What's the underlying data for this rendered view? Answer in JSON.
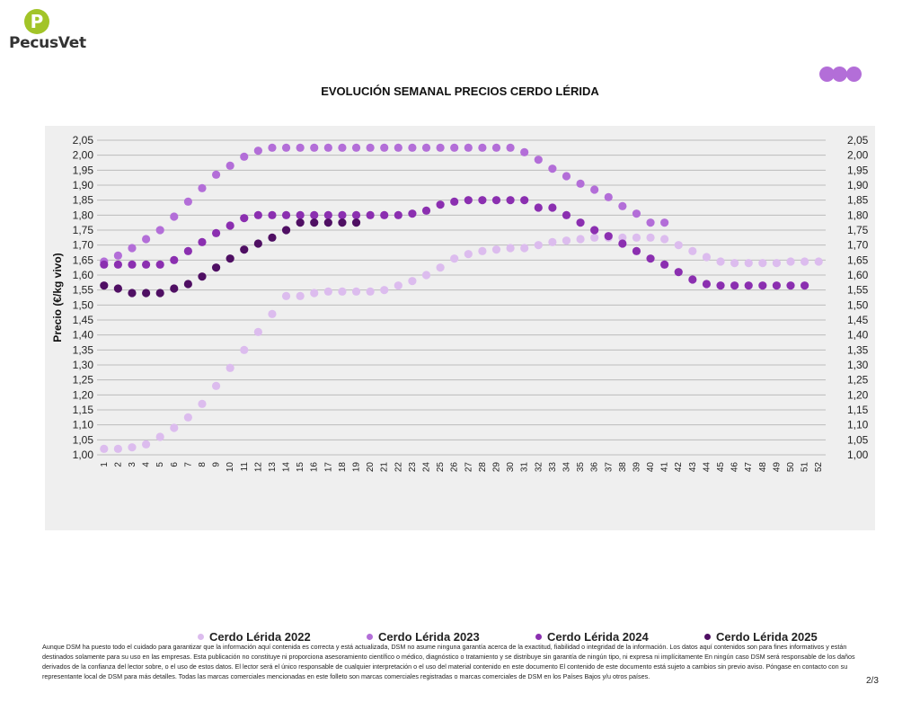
{
  "brand": {
    "logo_letter": "P",
    "logo_text": "PecusVet",
    "logo_color": "#a2c428",
    "accent_dots": [
      "#b36ed8",
      "#b36ed8",
      "#b36ed8"
    ]
  },
  "chart_data": {
    "type": "scatter",
    "title": "EVOLUCIÓN SEMANAL PRECIOS CERDO LÉRIDA",
    "ylabel": "Precio (€/kg vivo)",
    "xlabel": "",
    "ylim": [
      1.0,
      2.05
    ],
    "ytick_step": 0.05,
    "x": [
      1,
      2,
      3,
      4,
      5,
      6,
      7,
      8,
      9,
      10,
      11,
      12,
      13,
      14,
      15,
      16,
      17,
      18,
      19,
      20,
      21,
      22,
      23,
      24,
      25,
      26,
      27,
      28,
      29,
      30,
      31,
      32,
      33,
      34,
      35,
      36,
      37,
      38,
      39,
      40,
      41,
      42,
      43,
      44,
      45,
      46,
      47,
      48,
      49,
      50,
      51,
      52
    ],
    "yticks": [
      "1,00",
      "1,05",
      "1,10",
      "1,15",
      "1,20",
      "1,25",
      "1,30",
      "1,35",
      "1,40",
      "1,45",
      "1,50",
      "1,55",
      "1,60",
      "1,65",
      "1,70",
      "1,75",
      "1,80",
      "1,85",
      "1,90",
      "1,95",
      "2,00",
      "2,05"
    ],
    "grid": true,
    "legend_position": "bottom",
    "series": [
      {
        "name": "Cerdo Lérida 2022",
        "color": "#dcbcee",
        "values": [
          1.02,
          1.02,
          1.025,
          1.035,
          1.06,
          1.09,
          1.125,
          1.17,
          1.23,
          1.29,
          1.35,
          1.41,
          1.47,
          1.53,
          1.53,
          1.54,
          1.545,
          1.545,
          1.545,
          1.545,
          1.55,
          1.565,
          1.58,
          1.6,
          1.625,
          1.655,
          1.67,
          1.68,
          1.685,
          1.69,
          1.69,
          1.7,
          1.71,
          1.715,
          1.72,
          1.725,
          1.725,
          1.725,
          1.725,
          1.725,
          1.72,
          1.7,
          1.68,
          1.66,
          1.645,
          1.64,
          1.64,
          1.64,
          1.64,
          1.645,
          1.645,
          1.645
        ]
      },
      {
        "name": "Cerdo Lérida 2023",
        "color": "#b36ed8",
        "values": [
          1.645,
          1.665,
          1.69,
          1.72,
          1.75,
          1.795,
          1.845,
          1.89,
          1.935,
          1.965,
          1.995,
          2.015,
          2.025,
          2.025,
          2.025,
          2.025,
          2.025,
          2.025,
          2.025,
          2.025,
          2.025,
          2.025,
          2.025,
          2.025,
          2.025,
          2.025,
          2.025,
          2.025,
          2.025,
          2.025,
          2.01,
          1.985,
          1.955,
          1.93,
          1.905,
          1.885,
          1.86,
          1.83,
          1.805,
          1.775,
          1.775,
          null,
          null,
          null,
          null,
          null,
          null,
          null,
          null,
          null,
          null,
          null
        ]
      },
      {
        "name": "Cerdo Lérida 2024",
        "color": "#8b2fb0",
        "values": [
          1.635,
          1.635,
          1.635,
          1.635,
          1.635,
          1.65,
          1.68,
          1.71,
          1.74,
          1.765,
          1.79,
          1.8,
          1.8,
          1.8,
          1.8,
          1.8,
          1.8,
          1.8,
          1.8,
          1.8,
          1.8,
          1.8,
          1.805,
          1.815,
          1.835,
          1.845,
          1.85,
          1.85,
          1.85,
          1.85,
          1.85,
          1.825,
          1.825,
          1.8,
          1.775,
          1.75,
          1.73,
          1.705,
          1.68,
          1.655,
          1.635,
          1.61,
          1.585,
          1.57,
          1.565,
          1.565,
          1.565,
          1.565,
          1.565,
          1.565,
          1.565,
          null
        ]
      },
      {
        "name": "Cerdo Lérida 2025",
        "color": "#4f0f63",
        "values": [
          1.565,
          1.555,
          1.54,
          1.54,
          1.54,
          1.555,
          1.57,
          1.595,
          1.625,
          1.655,
          1.685,
          1.705,
          1.725,
          1.75,
          1.775,
          1.775,
          1.775,
          1.775,
          1.775,
          null,
          null,
          null,
          null,
          null,
          null,
          null,
          null,
          null,
          null,
          null,
          null,
          null,
          null,
          null,
          null,
          null,
          null,
          null,
          null,
          null,
          null,
          null,
          null,
          null,
          null,
          null,
          null,
          null,
          null,
          null,
          null,
          null
        ]
      }
    ]
  },
  "footer": {
    "disclaimer": "Aunque DSM ha puesto todo el cuidado para garantizar que la información aquí contenida es correcta y está actualizada, DSM no asume ninguna garantía acerca de la exactitud, fiabilidad o integridad de la información. Los datos aquí contenidos son para fines informativos y están destinados solamente para su uso en las empresas. Esta publicación no constituye ni proporciona asesoramiento científico o médico, diagnóstico o tratamiento y se distribuye sin garantía de ningún tipo, ni expresa ni implícitamente En ningún caso DSM será responsable de los daños derivados de la confianza del lector sobre, o el uso de estos datos. El lector será el único responsable de cualquier interpretación o el uso del material contenido en este documento El contenido de este documento está sujeto a cambios sin previo aviso. Póngase en contacto con su representante local de DSM para más detalles. Todas las marcas comerciales mencionadas en este folleto son marcas comerciales registradas o marcas comerciales de DSM en los Países Bajos y/u otros países.",
    "page_number": "2/3"
  }
}
